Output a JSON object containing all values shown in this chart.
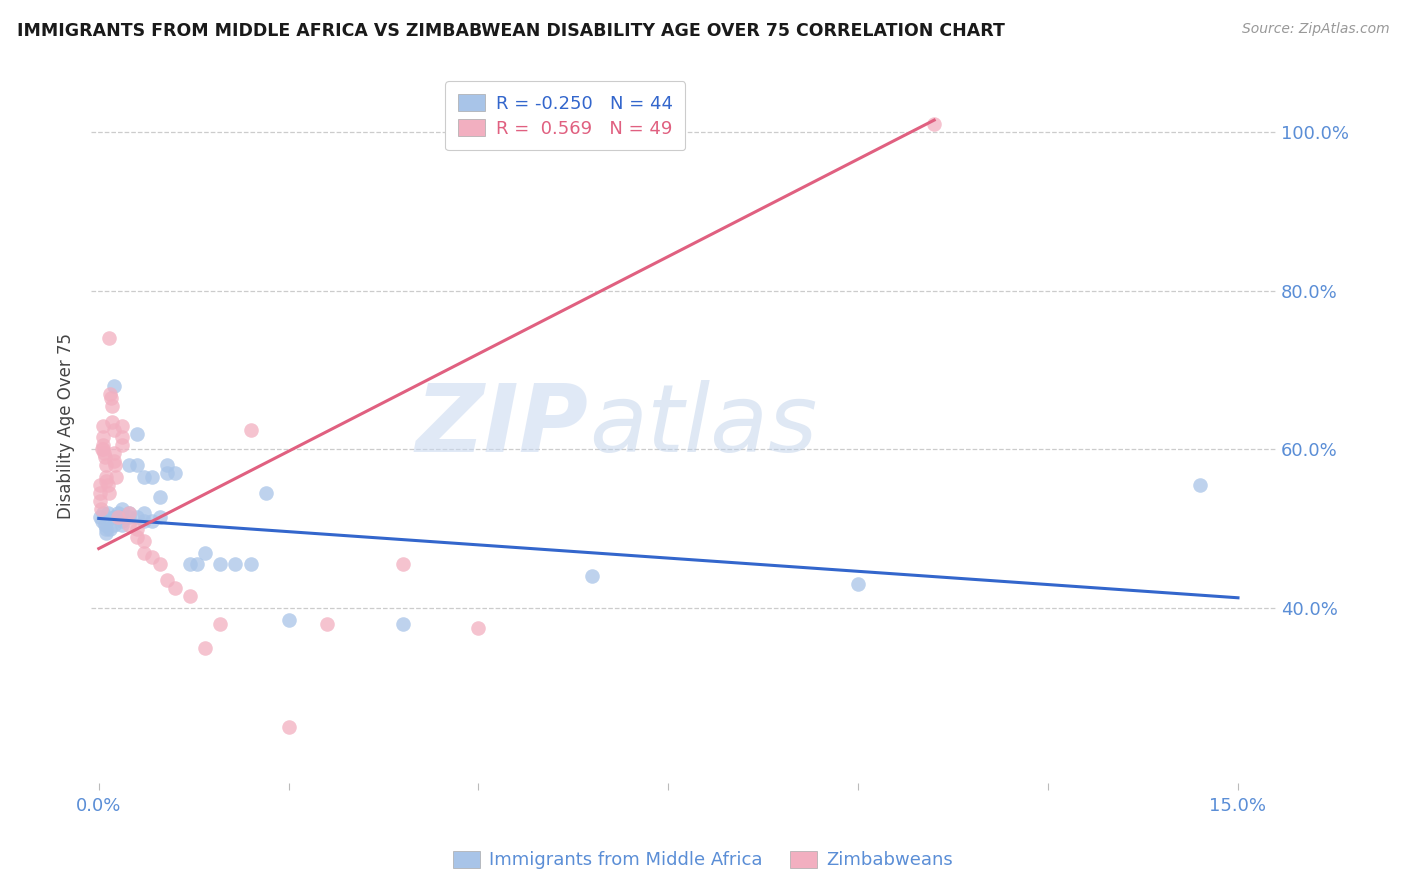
{
  "title": "IMMIGRANTS FROM MIDDLE AFRICA VS ZIMBABWEAN DISABILITY AGE OVER 75 CORRELATION CHART",
  "source": "Source: ZipAtlas.com",
  "ylabel": "Disability Age Over 75",
  "ytick_vals": [
    0.4,
    0.6,
    0.8,
    1.0
  ],
  "ytick_labels": [
    "40.0%",
    "60.0%",
    "80.0%",
    "100.0%"
  ],
  "legend_blue_r": "-0.250",
  "legend_blue_n": "44",
  "legend_pink_r": "0.569",
  "legend_pink_n": "49",
  "legend_blue_label": "Immigrants from Middle Africa",
  "legend_pink_label": "Zimbabweans",
  "blue_color": "#a8c4e8",
  "pink_color": "#f2afc0",
  "blue_line_color": "#3366cc",
  "pink_line_color": "#e06080",
  "watermark_zip": "ZIP",
  "watermark_atlas": "atlas",
  "blue_scatter_x": [
    0.0002,
    0.0004,
    0.0006,
    0.0008,
    0.001,
    0.001,
    0.0012,
    0.0015,
    0.002,
    0.002,
    0.002,
    0.0025,
    0.003,
    0.003,
    0.003,
    0.003,
    0.004,
    0.004,
    0.004,
    0.005,
    0.005,
    0.005,
    0.006,
    0.006,
    0.006,
    0.007,
    0.007,
    0.008,
    0.008,
    0.009,
    0.009,
    0.01,
    0.012,
    0.013,
    0.014,
    0.016,
    0.018,
    0.02,
    0.022,
    0.025,
    0.04,
    0.065,
    0.1,
    0.145
  ],
  "blue_scatter_y": [
    0.515,
    0.51,
    0.52,
    0.505,
    0.5,
    0.495,
    0.52,
    0.5,
    0.68,
    0.515,
    0.505,
    0.52,
    0.525,
    0.515,
    0.51,
    0.505,
    0.58,
    0.52,
    0.515,
    0.62,
    0.58,
    0.515,
    0.565,
    0.52,
    0.51,
    0.565,
    0.51,
    0.54,
    0.515,
    0.58,
    0.57,
    0.57,
    0.455,
    0.455,
    0.47,
    0.455,
    0.455,
    0.455,
    0.545,
    0.385,
    0.38,
    0.44,
    0.43,
    0.555
  ],
  "pink_scatter_x": [
    0.0001,
    0.0001,
    0.0002,
    0.0003,
    0.0004,
    0.0005,
    0.0005,
    0.0005,
    0.0006,
    0.0007,
    0.0008,
    0.001,
    0.001,
    0.001,
    0.0012,
    0.0013,
    0.0014,
    0.0015,
    0.0016,
    0.0017,
    0.0018,
    0.002,
    0.002,
    0.002,
    0.0022,
    0.0023,
    0.0025,
    0.003,
    0.003,
    0.003,
    0.004,
    0.004,
    0.005,
    0.005,
    0.006,
    0.006,
    0.007,
    0.008,
    0.009,
    0.01,
    0.012,
    0.014,
    0.016,
    0.02,
    0.025,
    0.03,
    0.04,
    0.05,
    0.11
  ],
  "pink_scatter_y": [
    0.555,
    0.545,
    0.535,
    0.525,
    0.6,
    0.63,
    0.615,
    0.605,
    0.6,
    0.595,
    0.59,
    0.58,
    0.565,
    0.56,
    0.555,
    0.545,
    0.74,
    0.67,
    0.665,
    0.655,
    0.635,
    0.625,
    0.595,
    0.585,
    0.58,
    0.565,
    0.515,
    0.63,
    0.615,
    0.605,
    0.52,
    0.505,
    0.5,
    0.49,
    0.485,
    0.47,
    0.465,
    0.455,
    0.435,
    0.425,
    0.415,
    0.35,
    0.38,
    0.625,
    0.25,
    0.38,
    0.455,
    0.375,
    1.01
  ],
  "blue_trendline_x": [
    0.0,
    0.15
  ],
  "blue_trendline_y": [
    0.513,
    0.413
  ],
  "pink_trendline_x": [
    0.0,
    0.11
  ],
  "pink_trendline_y": [
    0.475,
    1.015
  ],
  "xlim": [
    -0.001,
    0.155
  ],
  "ylim": [
    0.18,
    1.08
  ],
  "xticks": [
    0.0,
    0.025,
    0.05,
    0.075,
    0.1,
    0.125,
    0.15
  ],
  "xtick_labels": [
    "0.0%",
    "",
    "",
    "",
    "",
    "",
    "15.0%"
  ]
}
